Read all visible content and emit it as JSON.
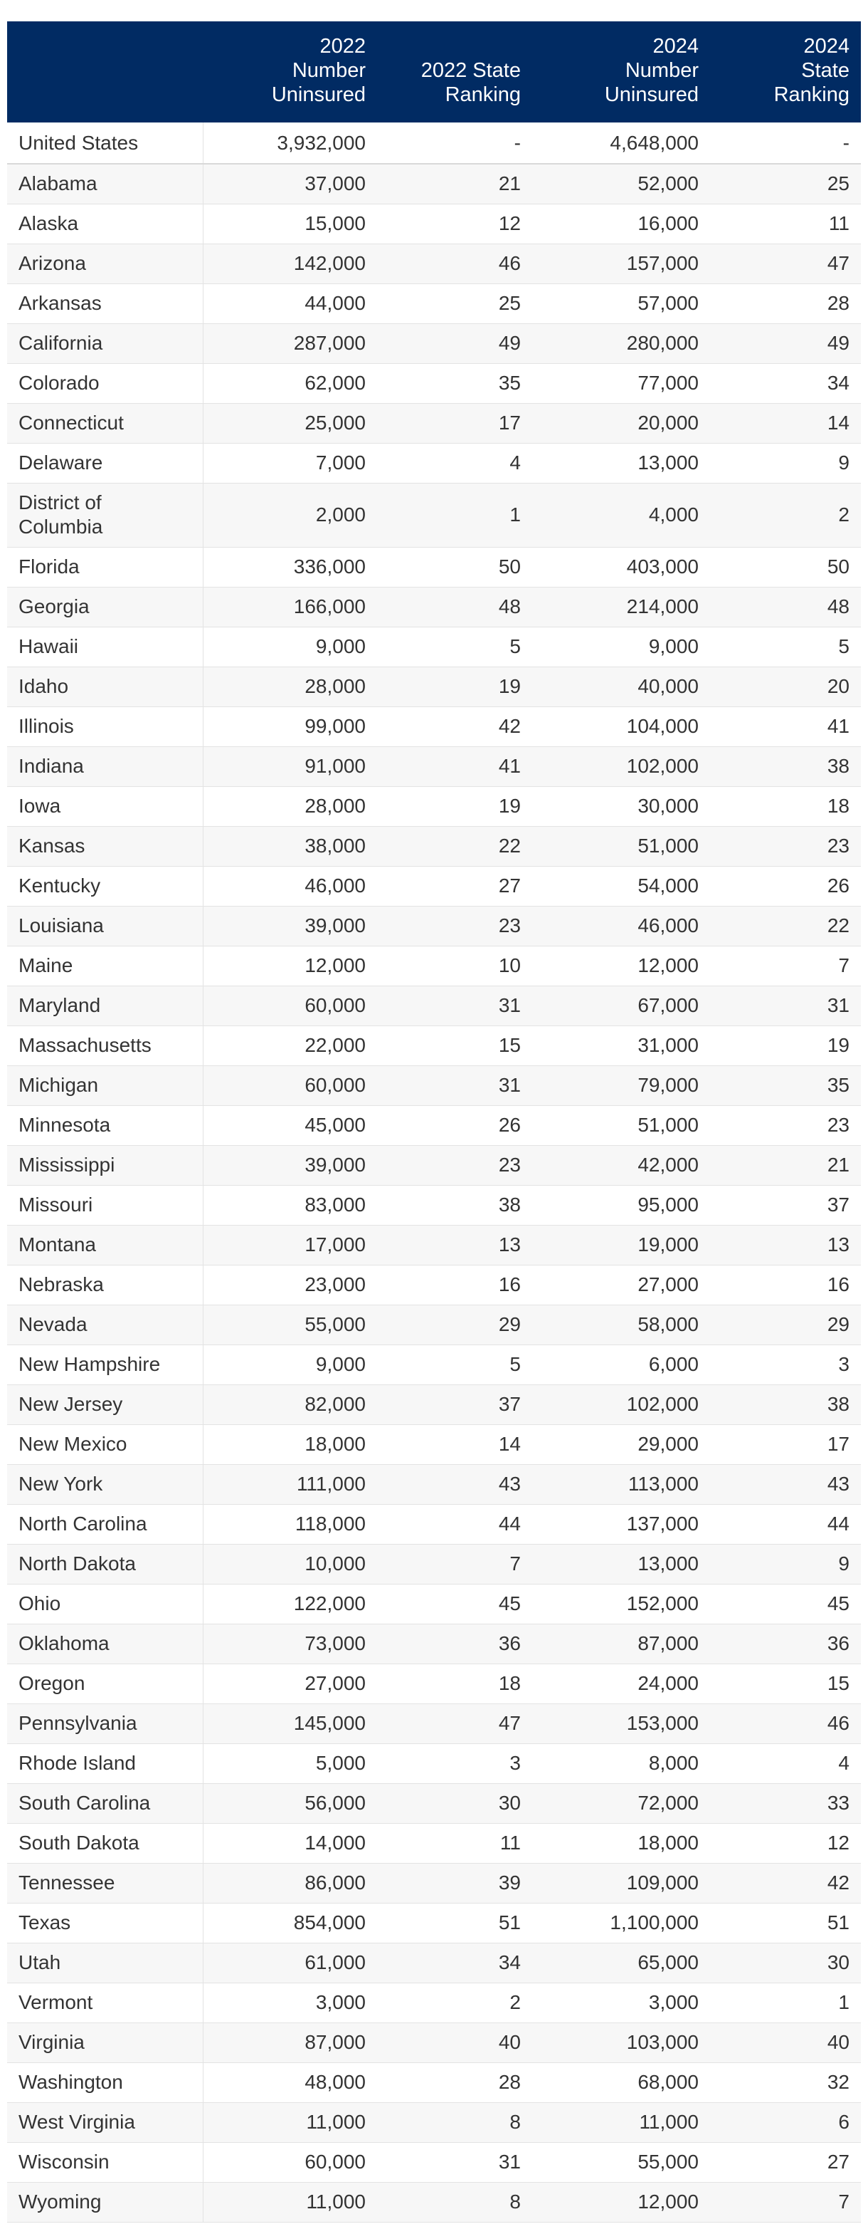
{
  "table": {
    "headers": {
      "state": "",
      "n2022": "2022\nNumber\nUninsured",
      "r2022": "2022 State\nRanking",
      "n2024": "2024\nNumber\nUninsured",
      "r2024": "2024\nState\nRanking"
    },
    "rows": [
      {
        "state": "United States",
        "n2022": "3,932,000",
        "r2022": "-",
        "n2024": "4,648,000",
        "r2024": "-"
      },
      {
        "state": "Alabama",
        "n2022": "37,000",
        "r2022": "21",
        "n2024": "52,000",
        "r2024": "25"
      },
      {
        "state": "Alaska",
        "n2022": "15,000",
        "r2022": "12",
        "n2024": "16,000",
        "r2024": "11"
      },
      {
        "state": "Arizona",
        "n2022": "142,000",
        "r2022": "46",
        "n2024": "157,000",
        "r2024": "47"
      },
      {
        "state": "Arkansas",
        "n2022": "44,000",
        "r2022": "25",
        "n2024": "57,000",
        "r2024": "28"
      },
      {
        "state": "California",
        "n2022": "287,000",
        "r2022": "49",
        "n2024": "280,000",
        "r2024": "49"
      },
      {
        "state": "Colorado",
        "n2022": "62,000",
        "r2022": "35",
        "n2024": "77,000",
        "r2024": "34"
      },
      {
        "state": "Connecticut",
        "n2022": "25,000",
        "r2022": "17",
        "n2024": "20,000",
        "r2024": "14"
      },
      {
        "state": "Delaware",
        "n2022": "7,000",
        "r2022": "4",
        "n2024": "13,000",
        "r2024": "9"
      },
      {
        "state": "District of Columbia",
        "n2022": "2,000",
        "r2022": "1",
        "n2024": "4,000",
        "r2024": "2"
      },
      {
        "state": "Florida",
        "n2022": "336,000",
        "r2022": "50",
        "n2024": "403,000",
        "r2024": "50"
      },
      {
        "state": "Georgia",
        "n2022": "166,000",
        "r2022": "48",
        "n2024": "214,000",
        "r2024": "48"
      },
      {
        "state": "Hawaii",
        "n2022": "9,000",
        "r2022": "5",
        "n2024": "9,000",
        "r2024": "5"
      },
      {
        "state": "Idaho",
        "n2022": "28,000",
        "r2022": "19",
        "n2024": "40,000",
        "r2024": "20"
      },
      {
        "state": "Illinois",
        "n2022": "99,000",
        "r2022": "42",
        "n2024": "104,000",
        "r2024": "41"
      },
      {
        "state": "Indiana",
        "n2022": "91,000",
        "r2022": "41",
        "n2024": "102,000",
        "r2024": "38"
      },
      {
        "state": "Iowa",
        "n2022": "28,000",
        "r2022": "19",
        "n2024": "30,000",
        "r2024": "18"
      },
      {
        "state": "Kansas",
        "n2022": "38,000",
        "r2022": "22",
        "n2024": "51,000",
        "r2024": "23"
      },
      {
        "state": "Kentucky",
        "n2022": "46,000",
        "r2022": "27",
        "n2024": "54,000",
        "r2024": "26"
      },
      {
        "state": "Louisiana",
        "n2022": "39,000",
        "r2022": "23",
        "n2024": "46,000",
        "r2024": "22"
      },
      {
        "state": "Maine",
        "n2022": "12,000",
        "r2022": "10",
        "n2024": "12,000",
        "r2024": "7"
      },
      {
        "state": "Maryland",
        "n2022": "60,000",
        "r2022": "31",
        "n2024": "67,000",
        "r2024": "31"
      },
      {
        "state": "Massachusetts",
        "n2022": "22,000",
        "r2022": "15",
        "n2024": "31,000",
        "r2024": "19"
      },
      {
        "state": "Michigan",
        "n2022": "60,000",
        "r2022": "31",
        "n2024": "79,000",
        "r2024": "35"
      },
      {
        "state": "Minnesota",
        "n2022": "45,000",
        "r2022": "26",
        "n2024": "51,000",
        "r2024": "23"
      },
      {
        "state": "Mississippi",
        "n2022": "39,000",
        "r2022": "23",
        "n2024": "42,000",
        "r2024": "21"
      },
      {
        "state": "Missouri",
        "n2022": "83,000",
        "r2022": "38",
        "n2024": "95,000",
        "r2024": "37"
      },
      {
        "state": "Montana",
        "n2022": "17,000",
        "r2022": "13",
        "n2024": "19,000",
        "r2024": "13"
      },
      {
        "state": "Nebraska",
        "n2022": "23,000",
        "r2022": "16",
        "n2024": "27,000",
        "r2024": "16"
      },
      {
        "state": "Nevada",
        "n2022": "55,000",
        "r2022": "29",
        "n2024": "58,000",
        "r2024": "29"
      },
      {
        "state": "New Hampshire",
        "n2022": "9,000",
        "r2022": "5",
        "n2024": "6,000",
        "r2024": "3"
      },
      {
        "state": "New Jersey",
        "n2022": "82,000",
        "r2022": "37",
        "n2024": "102,000",
        "r2024": "38"
      },
      {
        "state": "New Mexico",
        "n2022": "18,000",
        "r2022": "14",
        "n2024": "29,000",
        "r2024": "17"
      },
      {
        "state": "New York",
        "n2022": "111,000",
        "r2022": "43",
        "n2024": "113,000",
        "r2024": "43"
      },
      {
        "state": "North Carolina",
        "n2022": "118,000",
        "r2022": "44",
        "n2024": "137,000",
        "r2024": "44"
      },
      {
        "state": "North Dakota",
        "n2022": "10,000",
        "r2022": "7",
        "n2024": "13,000",
        "r2024": "9"
      },
      {
        "state": "Ohio",
        "n2022": "122,000",
        "r2022": "45",
        "n2024": "152,000",
        "r2024": "45"
      },
      {
        "state": "Oklahoma",
        "n2022": "73,000",
        "r2022": "36",
        "n2024": "87,000",
        "r2024": "36"
      },
      {
        "state": "Oregon",
        "n2022": "27,000",
        "r2022": "18",
        "n2024": "24,000",
        "r2024": "15"
      },
      {
        "state": "Pennsylvania",
        "n2022": "145,000",
        "r2022": "47",
        "n2024": "153,000",
        "r2024": "46"
      },
      {
        "state": "Rhode Island",
        "n2022": "5,000",
        "r2022": "3",
        "n2024": "8,000",
        "r2024": "4"
      },
      {
        "state": "South Carolina",
        "n2022": "56,000",
        "r2022": "30",
        "n2024": "72,000",
        "r2024": "33"
      },
      {
        "state": "South Dakota",
        "n2022": "14,000",
        "r2022": "11",
        "n2024": "18,000",
        "r2024": "12"
      },
      {
        "state": "Tennessee",
        "n2022": "86,000",
        "r2022": "39",
        "n2024": "109,000",
        "r2024": "42"
      },
      {
        "state": "Texas",
        "n2022": "854,000",
        "r2022": "51",
        "n2024": "1,100,000",
        "r2024": "51"
      },
      {
        "state": "Utah",
        "n2022": "61,000",
        "r2022": "34",
        "n2024": "65,000",
        "r2024": "30"
      },
      {
        "state": "Vermont",
        "n2022": "3,000",
        "r2022": "2",
        "n2024": "3,000",
        "r2024": "1"
      },
      {
        "state": "Virginia",
        "n2022": "87,000",
        "r2022": "40",
        "n2024": "103,000",
        "r2024": "40"
      },
      {
        "state": "Washington",
        "n2022": "48,000",
        "r2022": "28",
        "n2024": "68,000",
        "r2024": "32"
      },
      {
        "state": "West Virginia",
        "n2022": "11,000",
        "r2022": "8",
        "n2024": "11,000",
        "r2024": "6"
      },
      {
        "state": "Wisconsin",
        "n2022": "60,000",
        "r2022": "31",
        "n2024": "55,000",
        "r2024": "27"
      },
      {
        "state": "Wyoming",
        "n2022": "11,000",
        "r2022": "8",
        "n2024": "12,000",
        "r2024": "7"
      }
    ]
  },
  "colors": {
    "header_bg": "#012b63",
    "header_text": "#ffffff",
    "row_alt_bg": "#f7f7f7",
    "divider": "#e3e3e3"
  }
}
